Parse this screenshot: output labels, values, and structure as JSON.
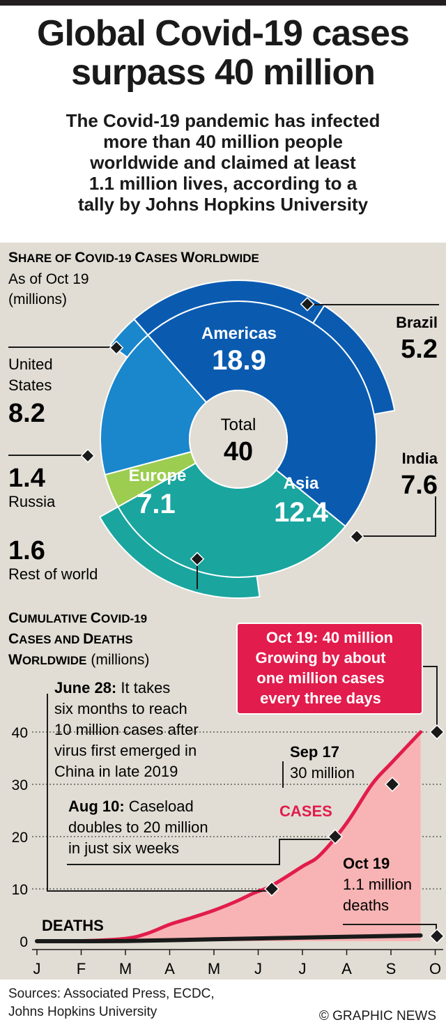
{
  "header": {
    "title_lines": [
      "Global Covid-19 cases",
      "surpass 40 million"
    ],
    "subtitle_lines": [
      "The Covid-19 pandemic has infected",
      "more than 40 million people",
      "worldwide and claimed at least",
      "1.1 million lives, according to a",
      "tally by Johns Hopkins University"
    ]
  },
  "footer": {
    "sources_lines": [
      "Sources: Associated Press, ECDC,",
      "Johns Hopkins University"
    ],
    "credit": "© GRAPHIC NEWS"
  },
  "colors": {
    "americas": "#0a5bb0",
    "europe": "#1a86cc",
    "asia": "#1aa59f",
    "rest": "#9ccd50",
    "cases_line": "#e21c4c",
    "cases_fill": "#f8b4b4",
    "callout_bg": "#e21c4c",
    "panel_bg": "#e1ddd4"
  },
  "chart_data": [
    {
      "type": "pie",
      "title": "Share of Covid-19 Cases Worldwide",
      "title_parts": [
        "S",
        "HARE OF ",
        "C",
        "OVID-19 ",
        "C",
        "ASES ",
        "W",
        "ORLDWIDE"
      ],
      "subtitle_lines": [
        "As of Oct 19",
        "(millions)"
      ],
      "center_label": "Total",
      "center_value": "40",
      "inner_ring": [
        {
          "name": "Americas",
          "value": 18.9
        },
        {
          "name": "Asia",
          "value": 12.4
        },
        {
          "name": "Rest of world",
          "value": 1.6
        },
        {
          "name": "Europe",
          "value": 7.1
        }
      ],
      "outer_ring": [
        {
          "name": "Brazil",
          "value": 5.2,
          "parent": "Americas"
        },
        {
          "name": "India",
          "value": 7.6,
          "parent": "Asia"
        },
        {
          "name": "Russia",
          "value": 1.4,
          "parent": "Europe"
        },
        {
          "name": "United States",
          "value": 8.2,
          "parent": "Americas"
        }
      ],
      "callouts": {
        "brazil": {
          "label": "Brazil",
          "value": "5.2"
        },
        "india": {
          "label": "India",
          "value": "7.6"
        },
        "us": {
          "label_lines": [
            "United",
            "States"
          ],
          "value": "8.2"
        },
        "russia": {
          "label": "Russia",
          "value": "1.4"
        },
        "rest": {
          "label": "Rest of world",
          "value": "1.6"
        }
      }
    },
    {
      "type": "area",
      "title_parts": [
        "C",
        "UMULATIVE ",
        "C",
        "OVID-19",
        "C",
        "ASES AND ",
        "D",
        "EATHS",
        "W",
        "ORLDWIDE"
      ],
      "title_unit": "(millions)",
      "categories": [
        "J",
        "F",
        "M",
        "A",
        "M",
        "J",
        "J",
        "A",
        "S",
        "O"
      ],
      "y_ticks": [
        0,
        10,
        20,
        30,
        40
      ],
      "ylim": [
        0,
        40
      ],
      "series": [
        {
          "name": "CASES",
          "x": [
            1.0,
            2.0,
            3.0,
            3.5,
            4.0,
            4.5,
            5.0,
            5.5,
            5.9,
            6.3,
            7.0,
            7.4,
            8.0,
            8.57,
            9.0,
            9.67
          ],
          "y": [
            0,
            0.05,
            0.5,
            1.5,
            3.2,
            4.5,
            5.9,
            7.6,
            9.2,
            10.6,
            14.3,
            16.5,
            22.6,
            30,
            34,
            40
          ]
        },
        {
          "name": "DEATHS",
          "x": [
            1.0,
            3.0,
            5.0,
            7.0,
            9.67
          ],
          "y": [
            0,
            0.03,
            0.37,
            0.68,
            1.1
          ]
        }
      ],
      "annotations": {
        "june": {
          "bold": "June 28:",
          "lines": [
            " It takes",
            "six months to reach",
            "10 million cases after",
            "virus first emerged in",
            "China in late 2019"
          ]
        },
        "aug": {
          "bold": "Aug 10:",
          "lines": [
            " Caseload",
            "doubles to 20 million",
            "in just six weeks"
          ]
        },
        "sep": {
          "bold": "Sep 17",
          "text": "30 million"
        },
        "oct_deaths": {
          "bold": "Oct 19",
          "lines": [
            "1.1 million",
            "deaths"
          ]
        },
        "oct_cases": {
          "lines": [
            "Oct 19: 40 million",
            "Growing by about",
            "one million cases",
            "every three days"
          ]
        }
      }
    }
  ]
}
